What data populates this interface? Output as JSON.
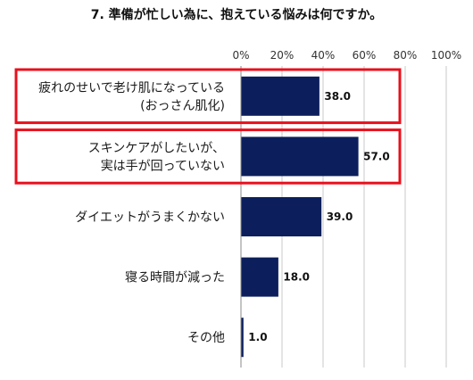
{
  "chart_data": {
    "type": "bar",
    "orientation": "horizontal",
    "title": "7. 準備が忙しい為に、抱えている悩みは何ですか。",
    "xlabel": "",
    "ylabel": "",
    "xlim": [
      0,
      100
    ],
    "ticks": [
      "0%",
      "20%",
      "40%",
      "60%",
      "80%",
      "100%"
    ],
    "grid": true,
    "categories": [
      [
        "疲れのせいで老け肌になっている",
        "(おっさん肌化)"
      ],
      [
        "スキンケアがしたいが、",
        "実は手が回っていない"
      ],
      [
        "ダイエットがうまくかない"
      ],
      [
        "寝る時間が減った"
      ],
      [
        "その他"
      ]
    ],
    "values": [
      38.0,
      57.0,
      39.0,
      18.0,
      1.0
    ],
    "value_labels": [
      "38.0",
      "57.0",
      "39.0",
      "18.0",
      "1.0"
    ],
    "highlighted": [
      0,
      1
    ],
    "colors": {
      "bar": "#0c1f5c",
      "highlight": "#e8101c",
      "grid": "#c8c8c8",
      "axis": "#8a8a8a"
    }
  }
}
